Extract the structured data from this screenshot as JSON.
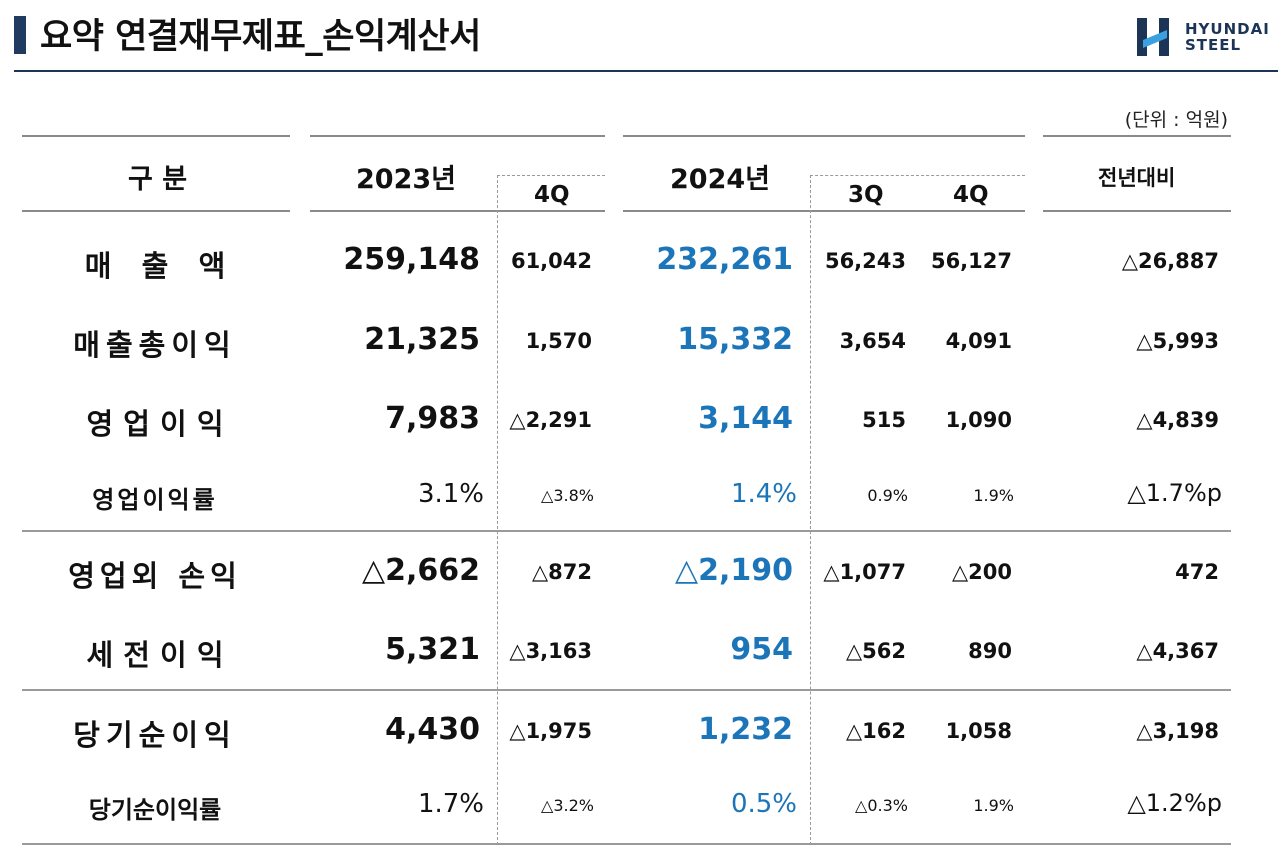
{
  "title": "요약 연결재무제표_손익계산서",
  "logo": {
    "line1": "HYUNDAI",
    "line2": "STEEL"
  },
  "unit": "(단위 : 억원)",
  "headers": {
    "category": "구 분",
    "year2023": "2023년",
    "q4_2023": "4Q",
    "year2024": "2024년",
    "q3_2024": "3Q",
    "q4_2024": "4Q",
    "yoy": "전년대비"
  },
  "rows": [
    {
      "label": "매   출   액",
      "y2023": "259,148",
      "q4_2023": "61,042",
      "y2024": "232,261",
      "q3_2024": "56,243",
      "q4_2024": "56,127",
      "yoy": "△26,887"
    },
    {
      "label": "매출총이익",
      "y2023": "21,325",
      "q4_2023": "1,570",
      "y2024": "15,332",
      "q3_2024": "3,654",
      "q4_2024": "4,091",
      "yoy": "△5,993"
    },
    {
      "label": "영 업 이 익",
      "y2023": "7,983",
      "q4_2023": "△2,291",
      "y2024": "3,144",
      "q3_2024": "515",
      "q4_2024": "1,090",
      "yoy": "△4,839"
    },
    {
      "label": "영업이익률",
      "y2023": "3.1%",
      "q4_2023": "△3.8%",
      "y2024": "1.4%",
      "q3_2024": "0.9%",
      "q4_2024": "1.9%",
      "yoy": "△1.7%p"
    },
    {
      "label": "영업외 손익",
      "y2023": "△2,662",
      "q4_2023": "△872",
      "y2024": "△2,190",
      "q3_2024": "△1,077",
      "q4_2024": "△200",
      "yoy": "472"
    },
    {
      "label": "세 전 이 익",
      "y2023": "5,321",
      "q4_2023": "△3,163",
      "y2024": "954",
      "q3_2024": "△562",
      "q4_2024": "890",
      "yoy": "△4,367"
    },
    {
      "label": "당기순이익",
      "y2023": "4,430",
      "q4_2023": "△1,975",
      "y2024": "1,232",
      "q3_2024": "△162",
      "q4_2024": "1,058",
      "yoy": "△3,198"
    },
    {
      "label": "당기순이익률",
      "y2023": "1.7%",
      "q4_2023": "△3.2%",
      "y2024": "0.5%",
      "q3_2024": "△0.3%",
      "q4_2024": "1.9%",
      "yoy": "△1.2%p"
    }
  ],
  "colors": {
    "accent_blue": "#1b75b8",
    "navy": "#1c3455"
  }
}
